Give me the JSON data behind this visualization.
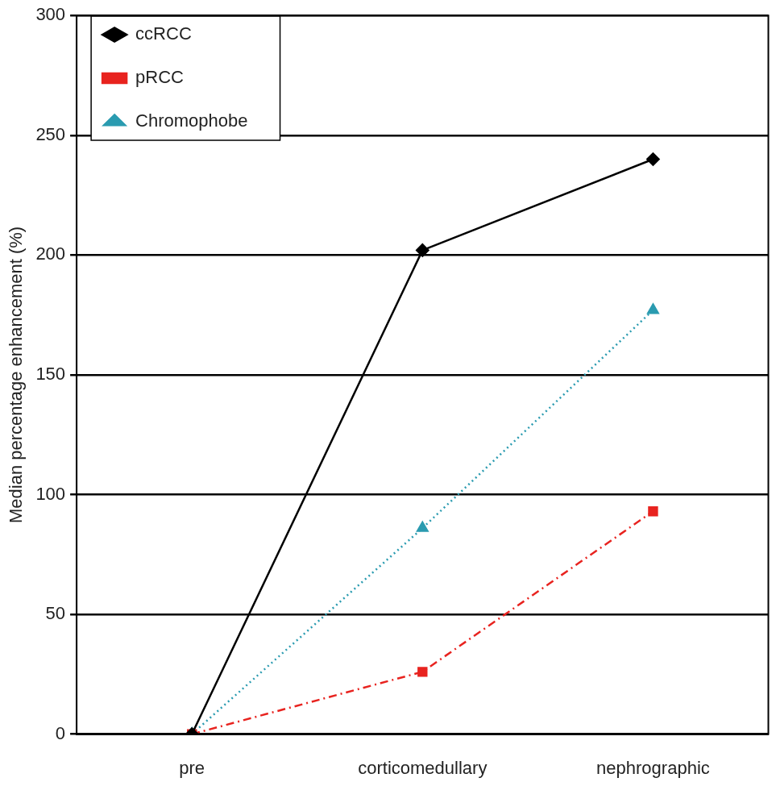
{
  "chart_data": {
    "type": "line",
    "ylabel": "Median percentage enhancement (%)",
    "categories": [
      "pre",
      "corticomedullary",
      "nephrographic"
    ],
    "series": [
      {
        "name": "ccRCC",
        "color": "#000000",
        "values": [
          0,
          202,
          240
        ],
        "marker": "diamond",
        "line_style": "solid"
      },
      {
        "name": "pRCC",
        "color": "#e8231f",
        "values": [
          0,
          26,
          93
        ],
        "marker": "square",
        "line_style": "dashdot"
      },
      {
        "name": "Chromophobe",
        "color": "#2a9bb0",
        "values": [
          0,
          86,
          177
        ],
        "marker": "triangle",
        "line_style": "dotted"
      }
    ],
    "ylim": [
      0,
      300
    ],
    "yticks": [
      0,
      50,
      100,
      150,
      200,
      250,
      300
    ],
    "grid": "y",
    "legend": "top left"
  }
}
